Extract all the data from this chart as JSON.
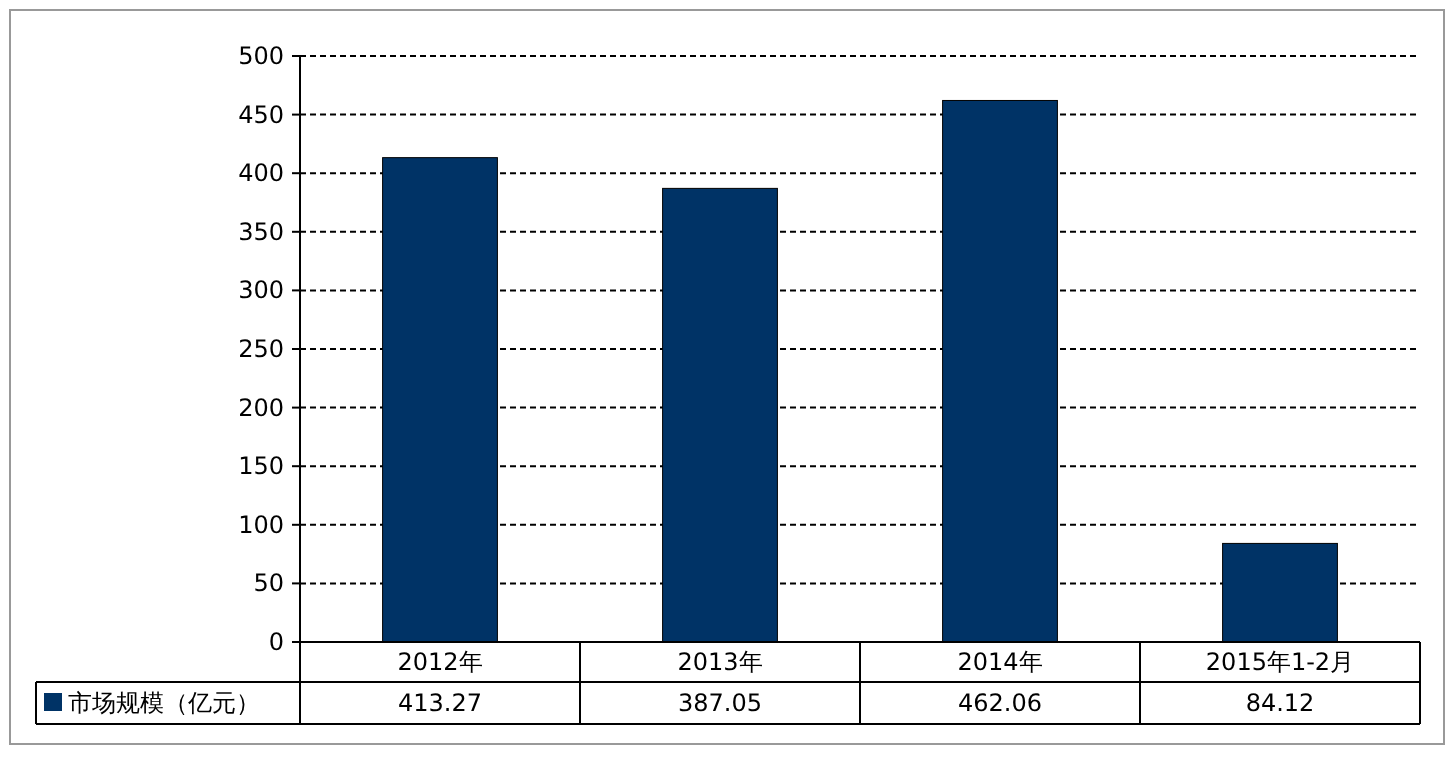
{
  "chart_data": {
    "type": "bar",
    "categories": [
      "2012年",
      "2013年",
      "2014年",
      "2015年1-2月"
    ],
    "series": [
      {
        "name": "市场规模（亿元）",
        "color": "#003366",
        "values": [
          413.27,
          387.05,
          462.06,
          84.12
        ]
      }
    ],
    "ylim": [
      0,
      500
    ],
    "yticks": [
      0,
      50,
      100,
      150,
      200,
      250,
      300,
      350,
      400,
      450,
      500
    ],
    "grid": "y",
    "legend": "bottom left",
    "data_labels": true
  }
}
